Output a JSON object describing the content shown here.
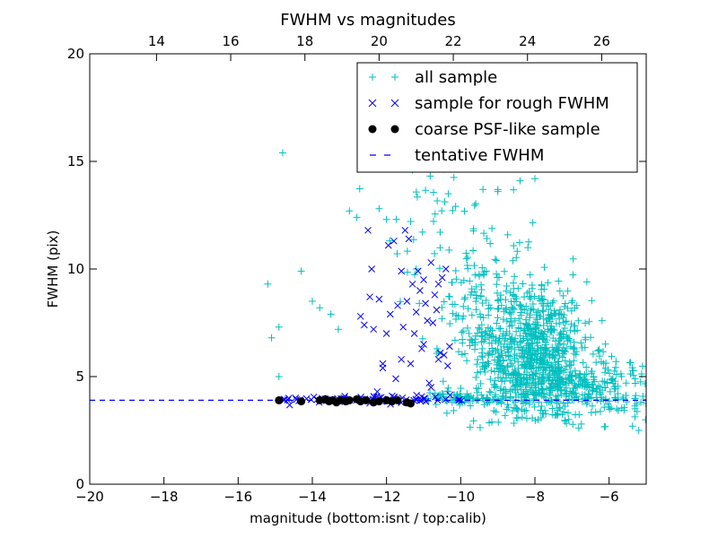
{
  "chart_data": {
    "type": "scatter",
    "title": "FWHM vs magnitudes",
    "xlabel": "magnitude (bottom:isnt / top:calib)",
    "ylabel": "FWHM (pix)",
    "xlim": [
      -20,
      -5
    ],
    "ylim": [
      0,
      20
    ],
    "x_ticks": [
      -20,
      -18,
      -16,
      -14,
      -12,
      -10,
      -8,
      -6
    ],
    "y_ticks": [
      0,
      5,
      10,
      15,
      20
    ],
    "top_axis": {
      "offset": 32.2,
      "ticks": [
        14,
        16,
        18,
        20,
        22,
        24,
        26
      ]
    },
    "grid": false,
    "legend_position": "top-right",
    "tentative_fwhm": 3.9,
    "series": [
      {
        "name": "all sample",
        "marker": "plus",
        "color": "#00bfbf",
        "clusters": [
          {
            "cx": -8.0,
            "cy": 6.0,
            "sx": 0.75,
            "sy": 1.6,
            "n": 700
          },
          {
            "cx": -9.2,
            "cy": 7.5,
            "sx": 0.7,
            "sy": 2.0,
            "n": 200
          },
          {
            "cx": -6.8,
            "cy": 4.5,
            "sx": 0.9,
            "sy": 0.6,
            "n": 200
          },
          {
            "cx": -9.8,
            "cy": 4.0,
            "sx": 0.6,
            "sy": 0.15,
            "n": 80
          },
          {
            "cx": -10.5,
            "cy": 12.5,
            "sx": 0.8,
            "sy": 2.5,
            "n": 60
          },
          {
            "cx": -5.6,
            "cy": 4.2,
            "sx": 0.5,
            "sy": 0.8,
            "n": 40
          }
        ],
        "x": [
          -15.2,
          -15.1,
          -14.9,
          -14.9,
          -14.8,
          -14.3,
          -14.0,
          -13.8,
          -13.5,
          -13.3,
          -13.0,
          -12.8,
          -12.2,
          -12.0,
          -11.4,
          -11.3,
          -5.9,
          -6.3,
          -6.6,
          -5.2,
          -5.3,
          -8.0,
          -8.4,
          -9.0,
          -9.4,
          -11.2
        ],
        "y": [
          9.3,
          6.8,
          7.3,
          5.0,
          15.4,
          9.9,
          8.5,
          8.2,
          7.9,
          7.2,
          12.7,
          12.4,
          12.8,
          12.3,
          14.9,
          14.6,
          4.9,
          6.2,
          9.4,
          2.5,
          4.9,
          14.2,
          14.1,
          13.6,
          13.7,
          10.0
        ]
      },
      {
        "name": "sample for rough FWHM",
        "marker": "x",
        "color": "#0000ff",
        "x": [
          -12.5,
          -12.7,
          -12.4,
          -12.2,
          -12.0,
          -12.1,
          -11.9,
          -11.8,
          -11.7,
          -11.6,
          -11.5,
          -11.4,
          -11.3,
          -11.2,
          -11.1,
          -11.0,
          -10.9,
          -10.8,
          -10.7,
          -10.6,
          -10.5,
          -10.4,
          -10.3,
          -12.6,
          -12.35,
          -12.1,
          -11.95,
          -11.75,
          -11.6,
          -11.45,
          -11.25,
          -11.05,
          -10.85,
          -10.65,
          -10.45,
          -12.25,
          -11.85,
          -11.15,
          -10.95,
          -10.75,
          -10.55,
          -10.35,
          -12.45,
          -11.55,
          -11.35,
          -11.0,
          -10.8,
          -10.6
        ],
        "y": [
          11.8,
          7.8,
          10.0,
          8.6,
          7.0,
          5.6,
          7.9,
          11.3,
          8.3,
          9.9,
          11.8,
          11.4,
          9.3,
          8.0,
          9.0,
          9.5,
          7.6,
          10.3,
          8.8,
          5.8,
          9.6,
          10.0,
          6.4,
          7.4,
          7.2,
          5.4,
          11.1,
          4.9,
          5.8,
          8.5,
          7.0,
          6.3,
          4.7,
          8.1,
          6.0,
          4.3,
          4.1,
          9.9,
          8.4,
          7.5,
          6.1,
          5.5,
          8.7,
          7.3,
          5.6,
          6.5,
          4.5,
          9.3
        ],
        "baseline": {
          "xmin": -14.9,
          "xmax": -9.8,
          "y": 3.95,
          "spread": 0.1,
          "n": 70
        }
      },
      {
        "name": "coarse PSF-like sample",
        "marker": "dot",
        "color": "#000000",
        "x": [
          -14.9,
          -14.3,
          -13.8,
          -13.65,
          -13.55,
          -13.45,
          -13.35,
          -13.1,
          -13.0,
          -12.8,
          -12.7,
          -12.55,
          -12.35,
          -12.2,
          -12.0,
          -11.85,
          -11.7,
          -11.45,
          -11.35,
          -13.25
        ],
        "y": [
          3.9,
          3.85,
          3.9,
          3.95,
          3.85,
          3.9,
          3.8,
          3.85,
          3.9,
          3.95,
          3.85,
          3.9,
          3.8,
          3.85,
          3.9,
          3.85,
          3.9,
          3.8,
          3.75,
          3.9
        ]
      },
      {
        "name": "tentative FWHM",
        "marker": "dashed-line",
        "color": "#0000ff"
      }
    ]
  }
}
